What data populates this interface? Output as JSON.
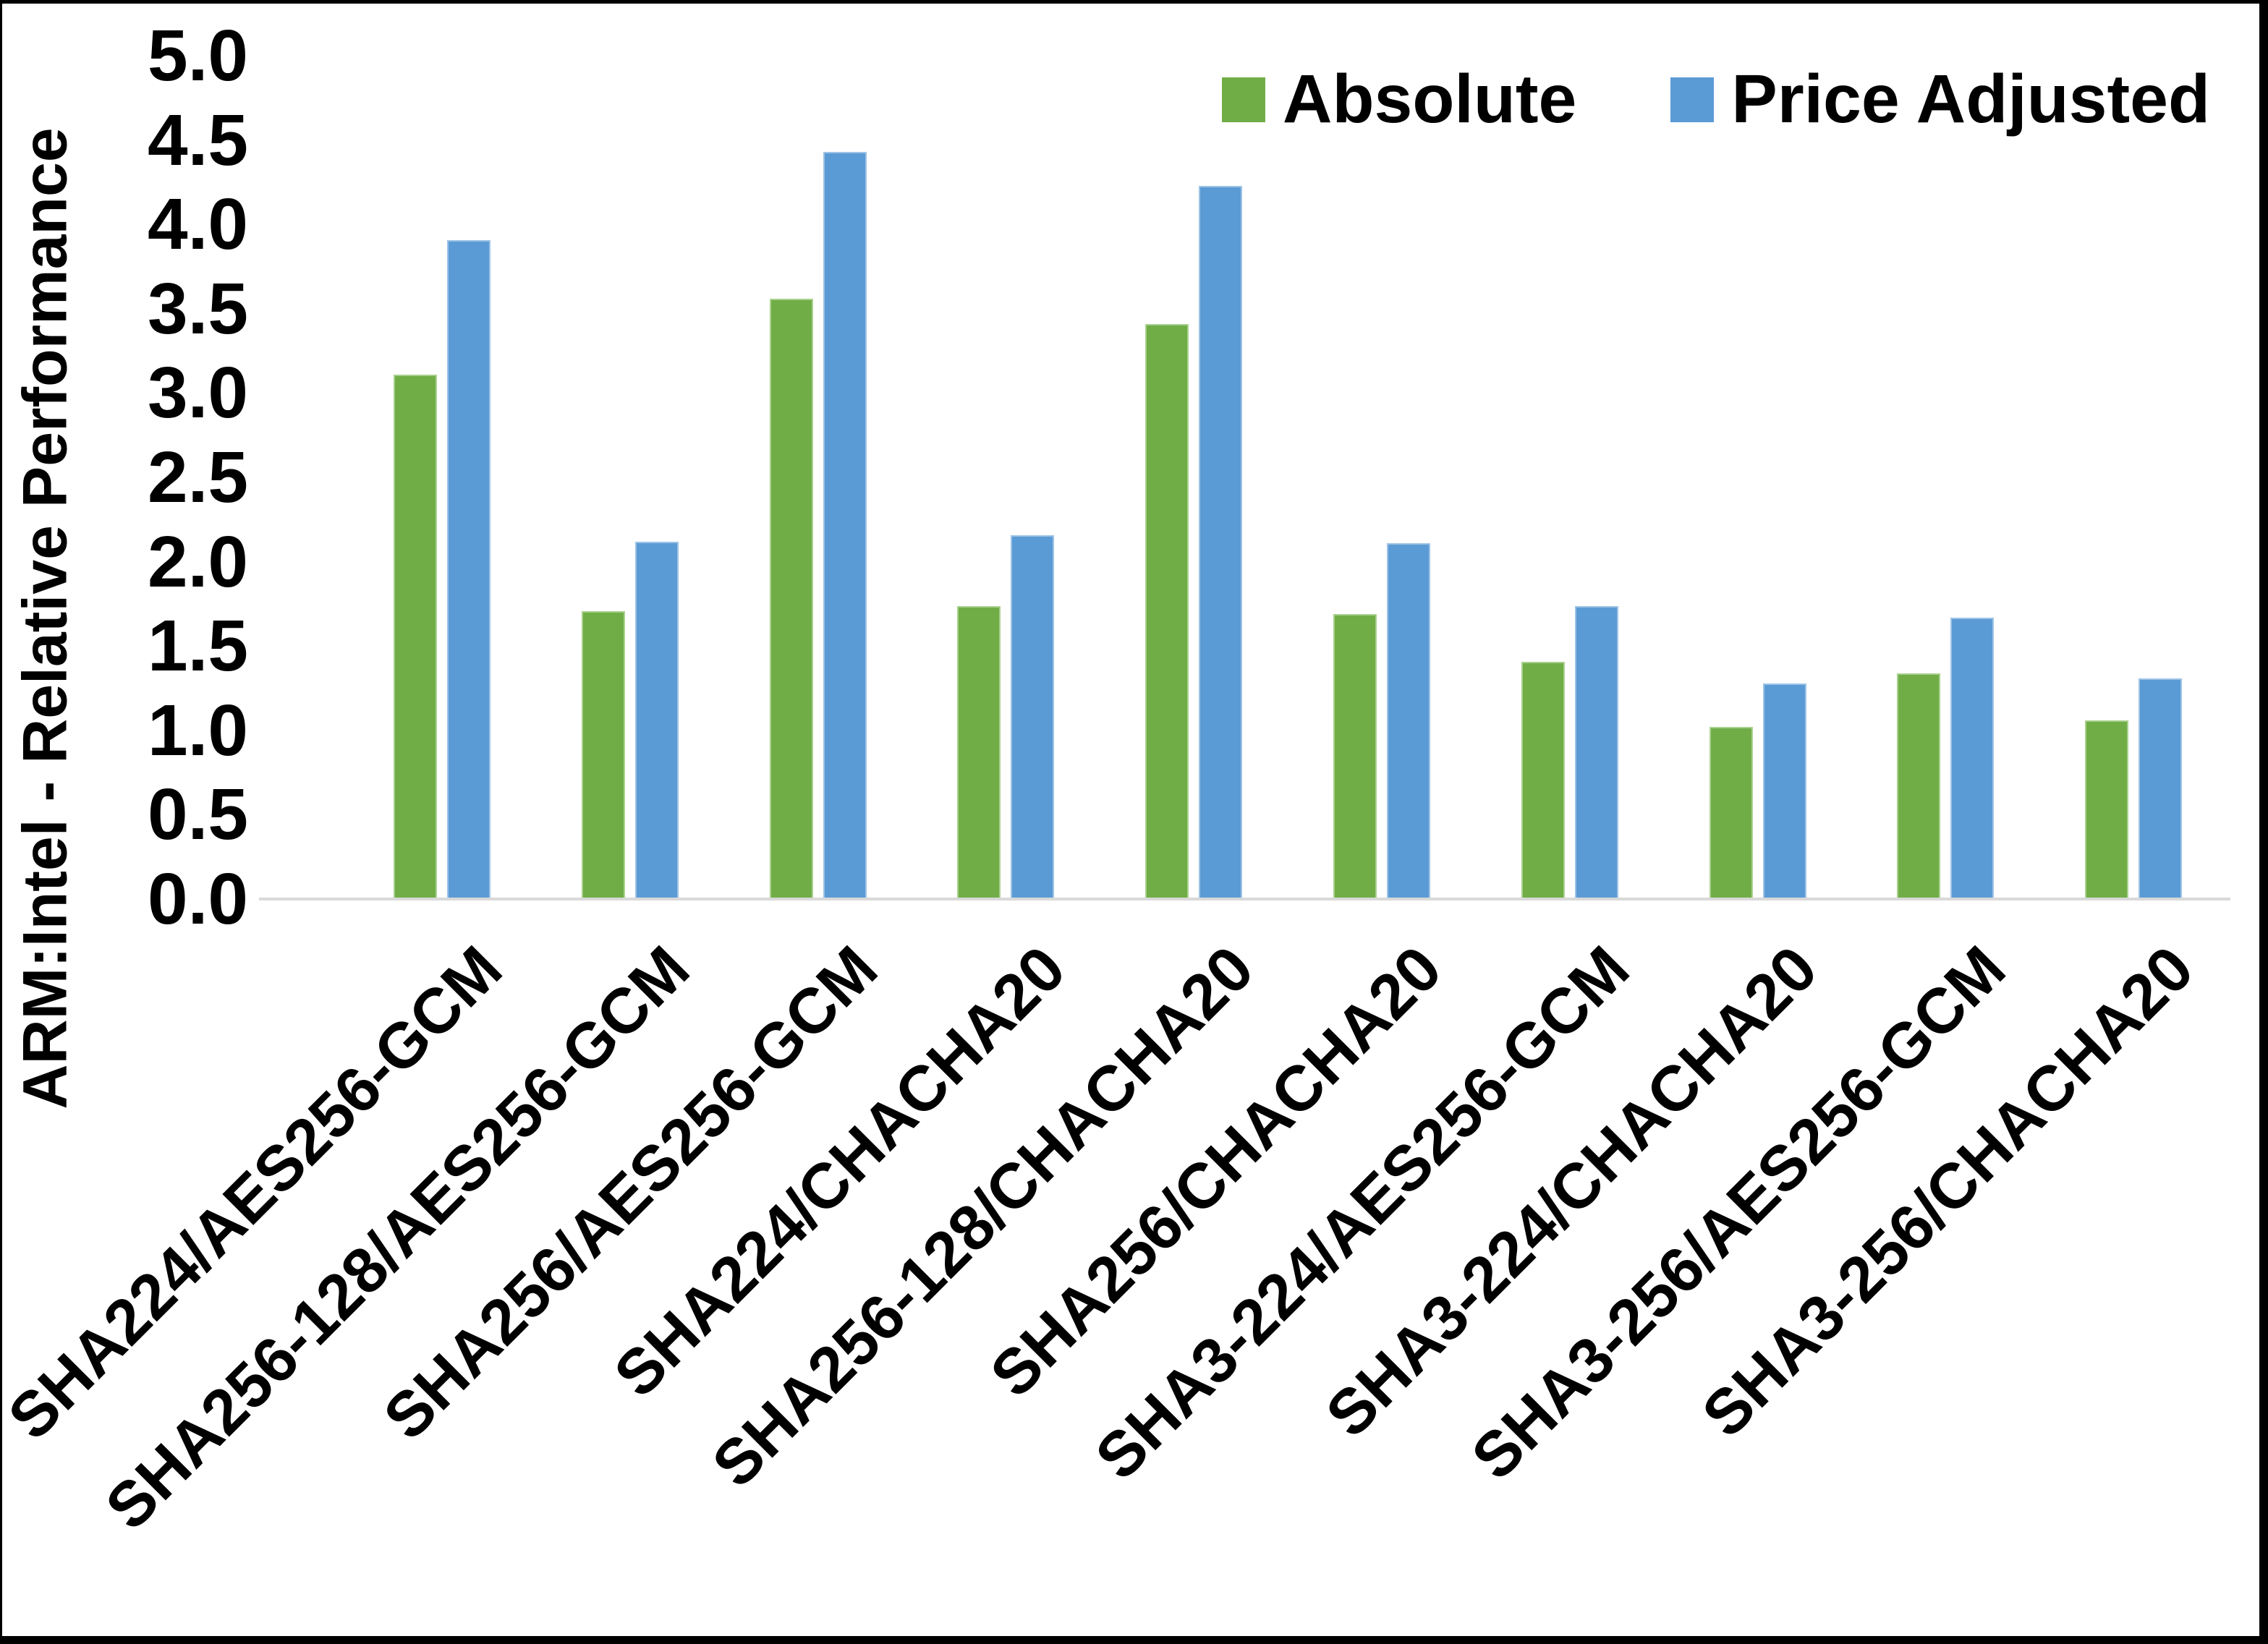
{
  "chart_data": {
    "type": "bar",
    "title": "",
    "xlabel": "",
    "ylabel": "ARM:Intel - Relative Performance",
    "ylim": [
      0,
      5
    ],
    "ytick_step": 0.5,
    "yticks": [
      "0.0",
      "0.5",
      "1.0",
      "1.5",
      "2.0",
      "2.5",
      "3.0",
      "3.5",
      "4.0",
      "4.5",
      "5.0"
    ],
    "grid": false,
    "legend_position": "top-right",
    "categories": [
      "SHA224/AES256-GCM",
      "SHA256-128/AES256-GCM",
      "SHA256/AES256-GCM",
      "SHA224/CHACHA20",
      "SHA256-128/CHACHA20",
      "SHA256/CHACHA20",
      "SHA3-224/AES256-GCM",
      "SHA3-224/CHACHA20",
      "SHA3-256/AES256-GCM",
      "SHA3-256/CHACHA20"
    ],
    "series": [
      {
        "name": "Absolute",
        "color": "#70AD47",
        "edge_color": "#a9d18e",
        "values": [
          3.1,
          1.7,
          3.55,
          1.73,
          3.4,
          1.68,
          1.4,
          1.01,
          1.33,
          1.05
        ]
      },
      {
        "name": "Price Adjusted",
        "color": "#5B9BD5",
        "edge_color": "#9dc3e6",
        "values": [
          3.9,
          2.11,
          4.42,
          2.15,
          4.22,
          2.1,
          1.73,
          1.27,
          1.66,
          1.3
        ]
      }
    ],
    "axis_line_color": "#d9d9d9"
  }
}
